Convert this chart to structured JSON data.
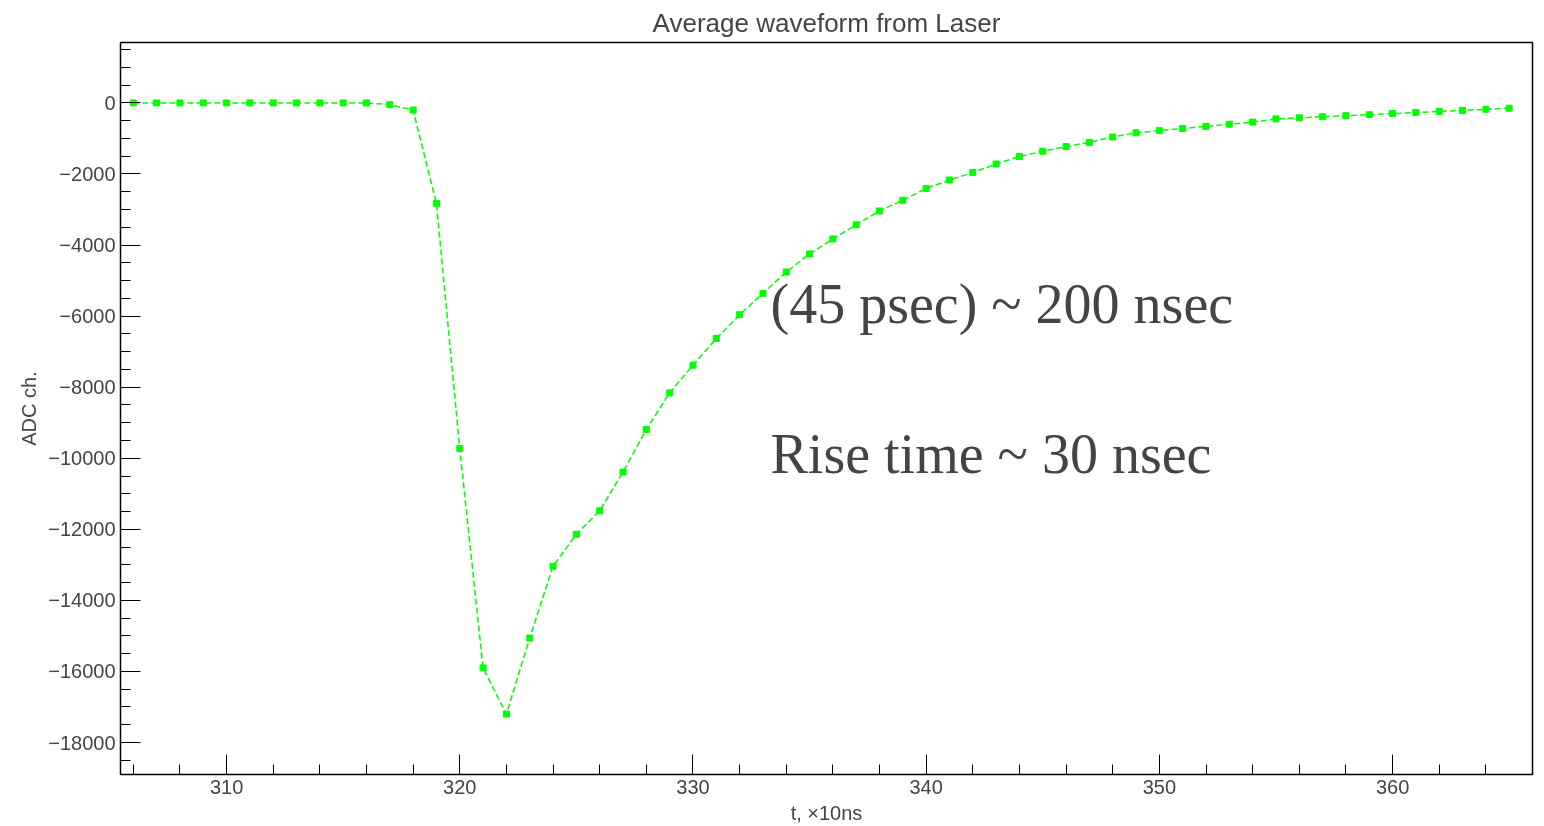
{
  "chart_data": {
    "type": "line",
    "title": "Average waveform from Laser",
    "xlabel": "t, ×10ns",
    "ylabel": "ADC ch.",
    "annotations": [
      "(45 psec) ~ 200 nsec",
      "Rise time ~ 30 nsec"
    ],
    "x": [
      306,
      307,
      308,
      309,
      310,
      311,
      312,
      313,
      314,
      315,
      316,
      317,
      318,
      319,
      320,
      321,
      322,
      323,
      324,
      325,
      326,
      327,
      328,
      329,
      330,
      331,
      332,
      333,
      334,
      335,
      336,
      337,
      338,
      339,
      340,
      341,
      342,
      343,
      344,
      345,
      346,
      347,
      348,
      349,
      350,
      351,
      352,
      353,
      354,
      355,
      356,
      357,
      358,
      359,
      360,
      361,
      362,
      363,
      364,
      365
    ],
    "series": [
      {
        "color": "#00ff00",
        "values": [
          0,
          0,
          0,
          0,
          0,
          0,
          0,
          0,
          0,
          0,
          0,
          -50,
          -200,
          -2830,
          -9730,
          -15900,
          -17200,
          -15060,
          -13040,
          -12140,
          -11480,
          -10390,
          -9190,
          -8160,
          -7380,
          -6630,
          -5960,
          -5360,
          -4760,
          -4250,
          -3830,
          -3430,
          -3040,
          -2740,
          -2410,
          -2170,
          -1960,
          -1720,
          -1510,
          -1360,
          -1230,
          -1110,
          -960,
          -840,
          -780,
          -720,
          -660,
          -600,
          -540,
          -450,
          -420,
          -390,
          -360,
          -330,
          -300,
          -270,
          -240,
          -210,
          -180,
          -150
        ]
      }
    ],
    "xlim": [
      305.45,
      366
    ],
    "xticks": [
      310,
      320,
      330,
      340,
      350,
      360
    ],
    "ylim": [
      -18900,
      1700
    ],
    "yticks": [
      {
        "value": 0,
        "label": "0"
      },
      {
        "value": -2000,
        "label": "−2000"
      },
      {
        "value": -4000,
        "label": "−4000"
      },
      {
        "value": -6000,
        "label": "−6000"
      },
      {
        "value": -8000,
        "label": "−8000"
      },
      {
        "value": -10000,
        "label": "−10000"
      },
      {
        "value": -12000,
        "label": "−12000"
      },
      {
        "value": -14000,
        "label": "−14000"
      },
      {
        "value": -16000,
        "label": "−16000"
      },
      {
        "value": -18000,
        "label": "−18000"
      }
    ],
    "grid": false,
    "marker": "square",
    "line_style": "dashed"
  }
}
